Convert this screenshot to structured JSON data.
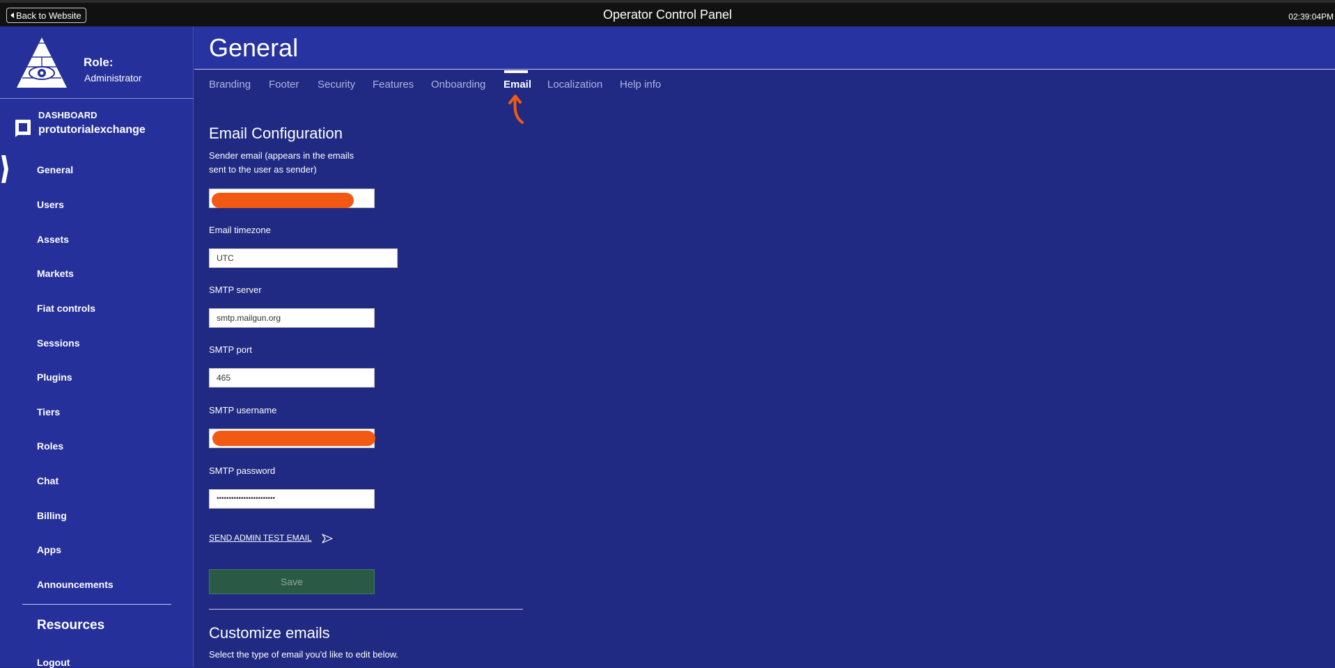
{
  "topbar": {
    "back_label": "Back to Website",
    "title": "Operator Control Panel",
    "clock": "02:39:04PM"
  },
  "sidebar": {
    "role_label": "Role:",
    "role_value": "Administrator",
    "dashboard_label": "DASHBOARD",
    "dashboard_name": "protutorialexchange",
    "items": [
      {
        "label": "General",
        "active": true
      },
      {
        "label": "Users"
      },
      {
        "label": "Assets"
      },
      {
        "label": "Markets"
      },
      {
        "label": "Fiat controls"
      },
      {
        "label": "Sessions"
      },
      {
        "label": "Plugins"
      },
      {
        "label": "Tiers"
      },
      {
        "label": "Roles"
      },
      {
        "label": "Chat"
      },
      {
        "label": "Billing"
      },
      {
        "label": "Apps"
      },
      {
        "label": "Announcements"
      }
    ],
    "resources_label": "Resources",
    "logout_label": "Logout"
  },
  "main": {
    "title": "General",
    "tabs": [
      {
        "label": "Branding"
      },
      {
        "label": "Footer"
      },
      {
        "label": "Security"
      },
      {
        "label": "Features"
      },
      {
        "label": "Onboarding"
      },
      {
        "label": "Email",
        "active": true
      },
      {
        "label": "Localization"
      },
      {
        "label": "Help info"
      }
    ],
    "email_config": {
      "title": "Email Configuration",
      "sender_label_line1": "Sender email (appears in the emails",
      "sender_label_line2": "sent to the user as sender)",
      "timezone_label": "Email timezone",
      "timezone_value": "UTC",
      "smtp_server_label": "SMTP server",
      "smtp_server_value": "smtp.mailgun.org",
      "smtp_port_label": "SMTP port",
      "smtp_port_value": "465",
      "smtp_username_label": "SMTP username",
      "smtp_password_label": "SMTP password",
      "smtp_password_value": "••••••••••••••••••••••••",
      "test_email_label": "SEND ADMIN TEST EMAIL",
      "save_label": "Save"
    },
    "customize": {
      "title": "Customize emails",
      "description": "Select the type of email you'd like to edit below."
    }
  },
  "colors": {
    "background": "#202a82",
    "sidebar": "#25309a",
    "topbar": "#111111",
    "annotation": "#f25a14",
    "save_button": "#2a5a46"
  }
}
